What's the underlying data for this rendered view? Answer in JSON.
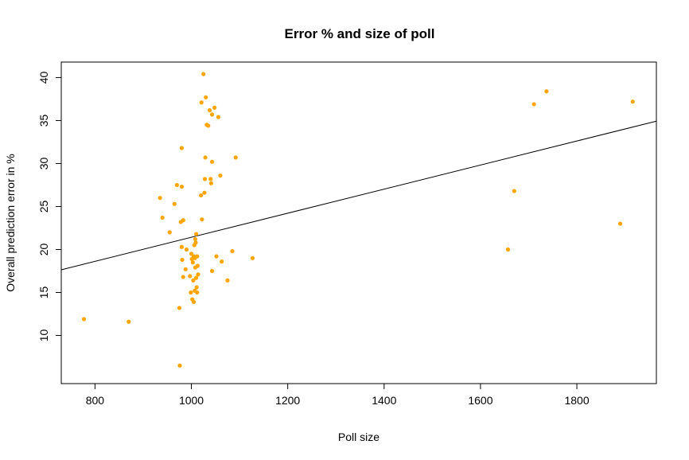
{
  "chart_data": {
    "type": "scatter",
    "title": "Error % and size of poll",
    "xlabel": "Poll size",
    "ylabel": "Overall prediction error in %",
    "xlim": [
      730,
      1965
    ],
    "ylim": [
      4.4,
      41.8
    ],
    "xticks": [
      800,
      1000,
      1200,
      1400,
      1600,
      1800
    ],
    "yticks": [
      10,
      15,
      20,
      25,
      30,
      35,
      40
    ],
    "point_color": "#FFA500",
    "grid": false,
    "legend": "none",
    "series": [
      {
        "points": [
          [
            777,
            11.9
          ],
          [
            870,
            11.6
          ],
          [
            935,
            26.0
          ],
          [
            940,
            23.7
          ],
          [
            955,
            22.0
          ],
          [
            965,
            25.3
          ],
          [
            970,
            27.5
          ],
          [
            975,
            13.2
          ],
          [
            976,
            6.5
          ],
          [
            978,
            23.2
          ],
          [
            980,
            20.3
          ],
          [
            980,
            31.8
          ],
          [
            980,
            27.3
          ],
          [
            981,
            18.8
          ],
          [
            983,
            23.4
          ],
          [
            983,
            16.8
          ],
          [
            988,
            17.7
          ],
          [
            990,
            20.0
          ],
          [
            997,
            16.9
          ],
          [
            999,
            15.0
          ],
          [
            1000,
            19.5
          ],
          [
            1001,
            18.9
          ],
          [
            1002,
            14.2
          ],
          [
            1003,
            18.5
          ],
          [
            1004,
            16.4
          ],
          [
            1005,
            19.2
          ],
          [
            1005,
            13.9
          ],
          [
            1006,
            20.5
          ],
          [
            1007,
            19.0
          ],
          [
            1007,
            15.2
          ],
          [
            1008,
            17.9
          ],
          [
            1008,
            21.2
          ],
          [
            1009,
            20.8
          ],
          [
            1010,
            16.7
          ],
          [
            1010,
            21.8
          ],
          [
            1011,
            15.6
          ],
          [
            1012,
            15.0
          ],
          [
            1012,
            19.2
          ],
          [
            1013,
            18.1
          ],
          [
            1014,
            17.1
          ],
          [
            1020,
            26.3
          ],
          [
            1021,
            37.1
          ],
          [
            1022,
            23.5
          ],
          [
            1025,
            40.4
          ],
          [
            1027,
            26.6
          ],
          [
            1028,
            28.2
          ],
          [
            1029,
            30.7
          ],
          [
            1030,
            37.7
          ],
          [
            1032,
            34.5
          ],
          [
            1035,
            34.4
          ],
          [
            1038,
            36.2
          ],
          [
            1040,
            28.2
          ],
          [
            1041,
            27.7
          ],
          [
            1043,
            30.2
          ],
          [
            1043,
            35.7
          ],
          [
            1043,
            17.5
          ],
          [
            1048,
            36.5
          ],
          [
            1052,
            19.2
          ],
          [
            1056,
            35.4
          ],
          [
            1060,
            28.6
          ],
          [
            1063,
            18.6
          ],
          [
            1075,
            16.4
          ],
          [
            1085,
            19.8
          ],
          [
            1092,
            30.7
          ],
          [
            1127,
            19.0
          ],
          [
            1657,
            20.0
          ],
          [
            1670,
            26.8
          ],
          [
            1711,
            36.9
          ],
          [
            1737,
            38.4
          ],
          [
            1890,
            23.0
          ],
          [
            1916,
            37.2
          ]
        ]
      }
    ],
    "regression_line": {
      "intercept": 7.42,
      "slope": 0.014
    }
  }
}
